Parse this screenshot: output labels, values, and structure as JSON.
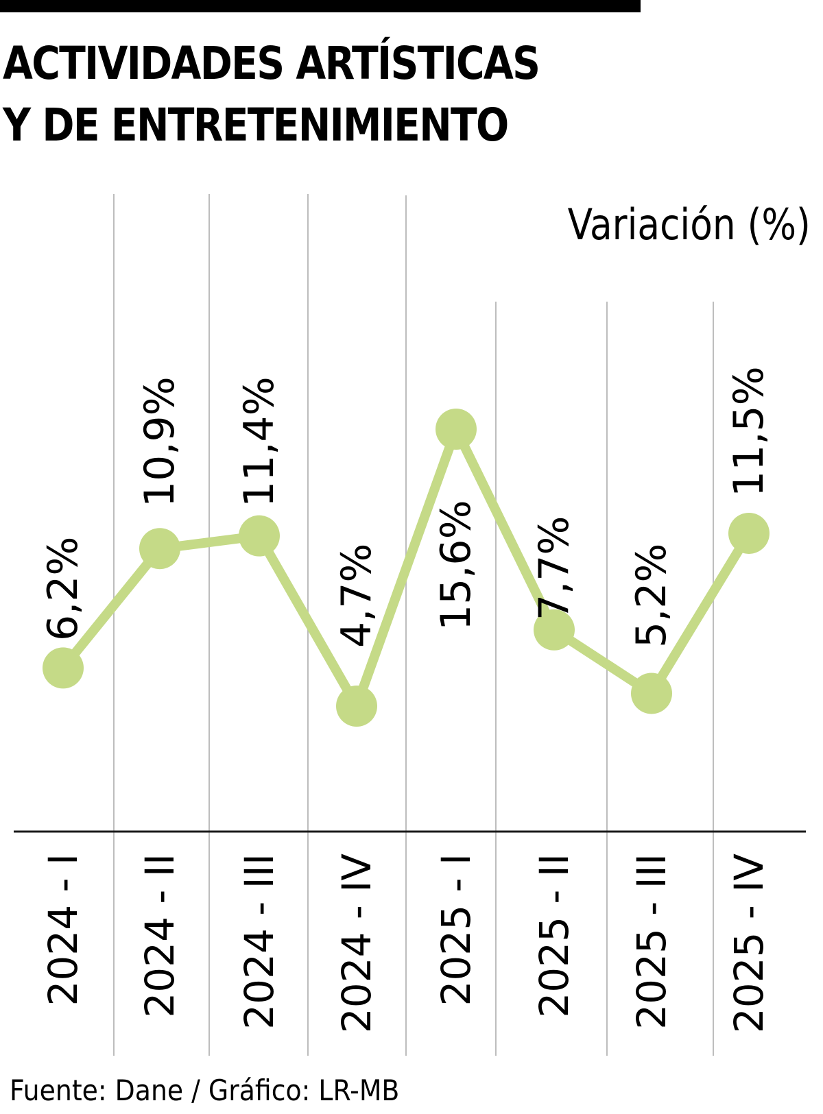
{
  "header": {
    "title_line1": "ACTIVIDADES ARTÍSTICAS",
    "title_line2": "Y DE ENTRETENIMIENTO",
    "unit_label": "Variación (%)"
  },
  "footer": {
    "source": "Fuente: Dane / Gráfico: LR-MB"
  },
  "colors": {
    "line": "#c5da87",
    "gridline": "#bdbdbd",
    "axis": "#1a1a1a",
    "text": "#000000"
  },
  "chart_data": {
    "type": "line",
    "title": "ACTIVIDADES ARTÍSTICAS Y DE ENTRETENIMIENTO",
    "subtitle": "Variación (%)",
    "xlabel": "",
    "ylabel": "Variación (%)",
    "categories": [
      "2024 - I",
      "2024 - II",
      "2024 - III",
      "2024 - IV",
      "2025 - I",
      "2025 - II",
      "2025 - III",
      "2025 - IV"
    ],
    "values": [
      6.2,
      10.9,
      11.4,
      4.7,
      15.6,
      7.7,
      5.2,
      11.5
    ],
    "data_labels": [
      "6,2%",
      "10,9%",
      "11,4%",
      "4,7%",
      "15,6%",
      "7,7%",
      "5,2%",
      "11,5%"
    ],
    "series": [
      {
        "name": "Variación (%)",
        "values": [
          6.2,
          10.9,
          11.4,
          4.7,
          15.6,
          7.7,
          5.2,
          11.5
        ]
      }
    ],
    "grid": "vertical separators between categories",
    "legend": "none",
    "source": "Fuente: Dane / Gráfico: LR-MB"
  }
}
